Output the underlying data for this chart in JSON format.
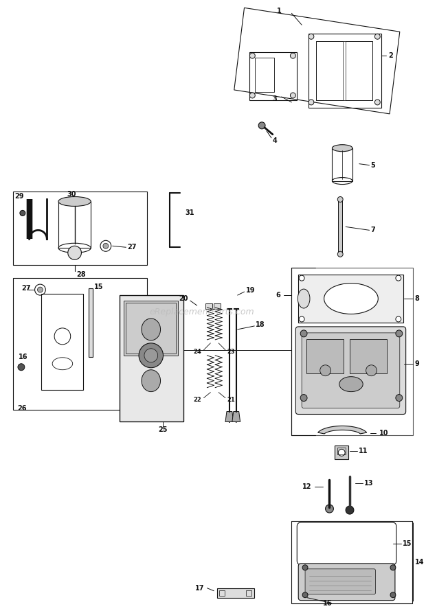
{
  "bg_color": "#ffffff",
  "line_color": "#111111",
  "watermark": "eReplacementParts.com",
  "fig_w": 6.2,
  "fig_h": 8.93,
  "dpi": 100
}
